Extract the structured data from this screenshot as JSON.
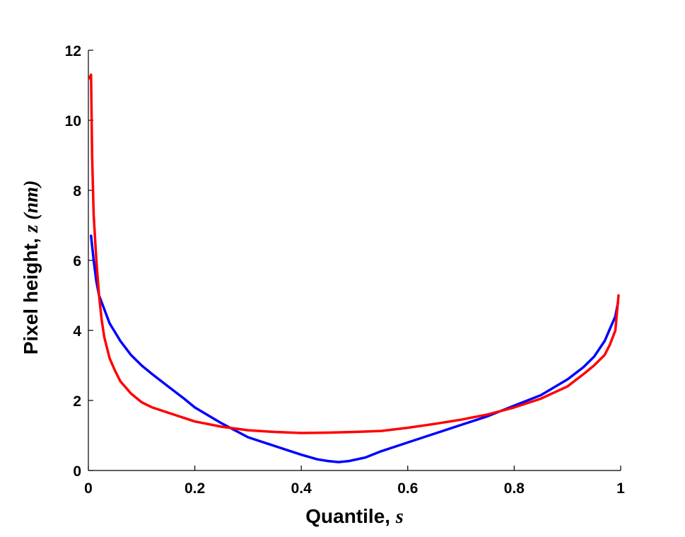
{
  "chart_data": {
    "type": "line",
    "title": "",
    "xlabel": {
      "text": "Quantile, ",
      "var": "s"
    },
    "ylabel": {
      "text": "Pixel height, ",
      "var": "z (nm)"
    },
    "xlim": [
      0,
      1
    ],
    "ylim": [
      0,
      12
    ],
    "xticks": [
      "0",
      "0.2",
      "0.4",
      "0.6",
      "0.8",
      "1"
    ],
    "yticks": [
      "0",
      "2",
      "4",
      "6",
      "8",
      "10",
      "12"
    ],
    "grid": false,
    "legend": false,
    "series": [
      {
        "color": "#0000ff",
        "x": [
          0.005,
          0.01,
          0.015,
          0.02,
          0.03,
          0.04,
          0.05,
          0.06,
          0.08,
          0.1,
          0.12,
          0.15,
          0.18,
          0.2,
          0.25,
          0.3,
          0.35,
          0.4,
          0.43,
          0.45,
          0.47,
          0.49,
          0.52,
          0.55,
          0.6,
          0.65,
          0.7,
          0.75,
          0.8,
          0.85,
          0.9,
          0.93,
          0.95,
          0.97,
          0.98,
          0.99,
          0.995
        ],
        "y": [
          6.7,
          6.0,
          5.4,
          5.0,
          4.6,
          4.2,
          3.95,
          3.7,
          3.3,
          3.0,
          2.75,
          2.4,
          2.05,
          1.8,
          1.35,
          0.95,
          0.7,
          0.45,
          0.32,
          0.27,
          0.24,
          0.27,
          0.37,
          0.55,
          0.8,
          1.05,
          1.3,
          1.55,
          1.85,
          2.15,
          2.6,
          2.95,
          3.25,
          3.7,
          4.05,
          4.4,
          4.8
        ]
      },
      {
        "color": "#ff0000",
        "x": [
          0.002,
          0.005,
          0.007,
          0.01,
          0.015,
          0.02,
          0.025,
          0.03,
          0.04,
          0.05,
          0.06,
          0.08,
          0.1,
          0.12,
          0.15,
          0.2,
          0.25,
          0.3,
          0.35,
          0.4,
          0.45,
          0.5,
          0.55,
          0.6,
          0.65,
          0.7,
          0.75,
          0.8,
          0.85,
          0.9,
          0.93,
          0.95,
          0.97,
          0.98,
          0.99,
          0.993,
          0.996
        ],
        "y": [
          11.2,
          11.3,
          9.0,
          7.3,
          6.0,
          5.0,
          4.3,
          3.8,
          3.2,
          2.85,
          2.55,
          2.2,
          1.95,
          1.8,
          1.65,
          1.4,
          1.25,
          1.15,
          1.1,
          1.07,
          1.08,
          1.1,
          1.13,
          1.22,
          1.33,
          1.45,
          1.6,
          1.8,
          2.05,
          2.4,
          2.75,
          3.0,
          3.3,
          3.6,
          4.0,
          4.5,
          5.0
        ]
      }
    ]
  }
}
